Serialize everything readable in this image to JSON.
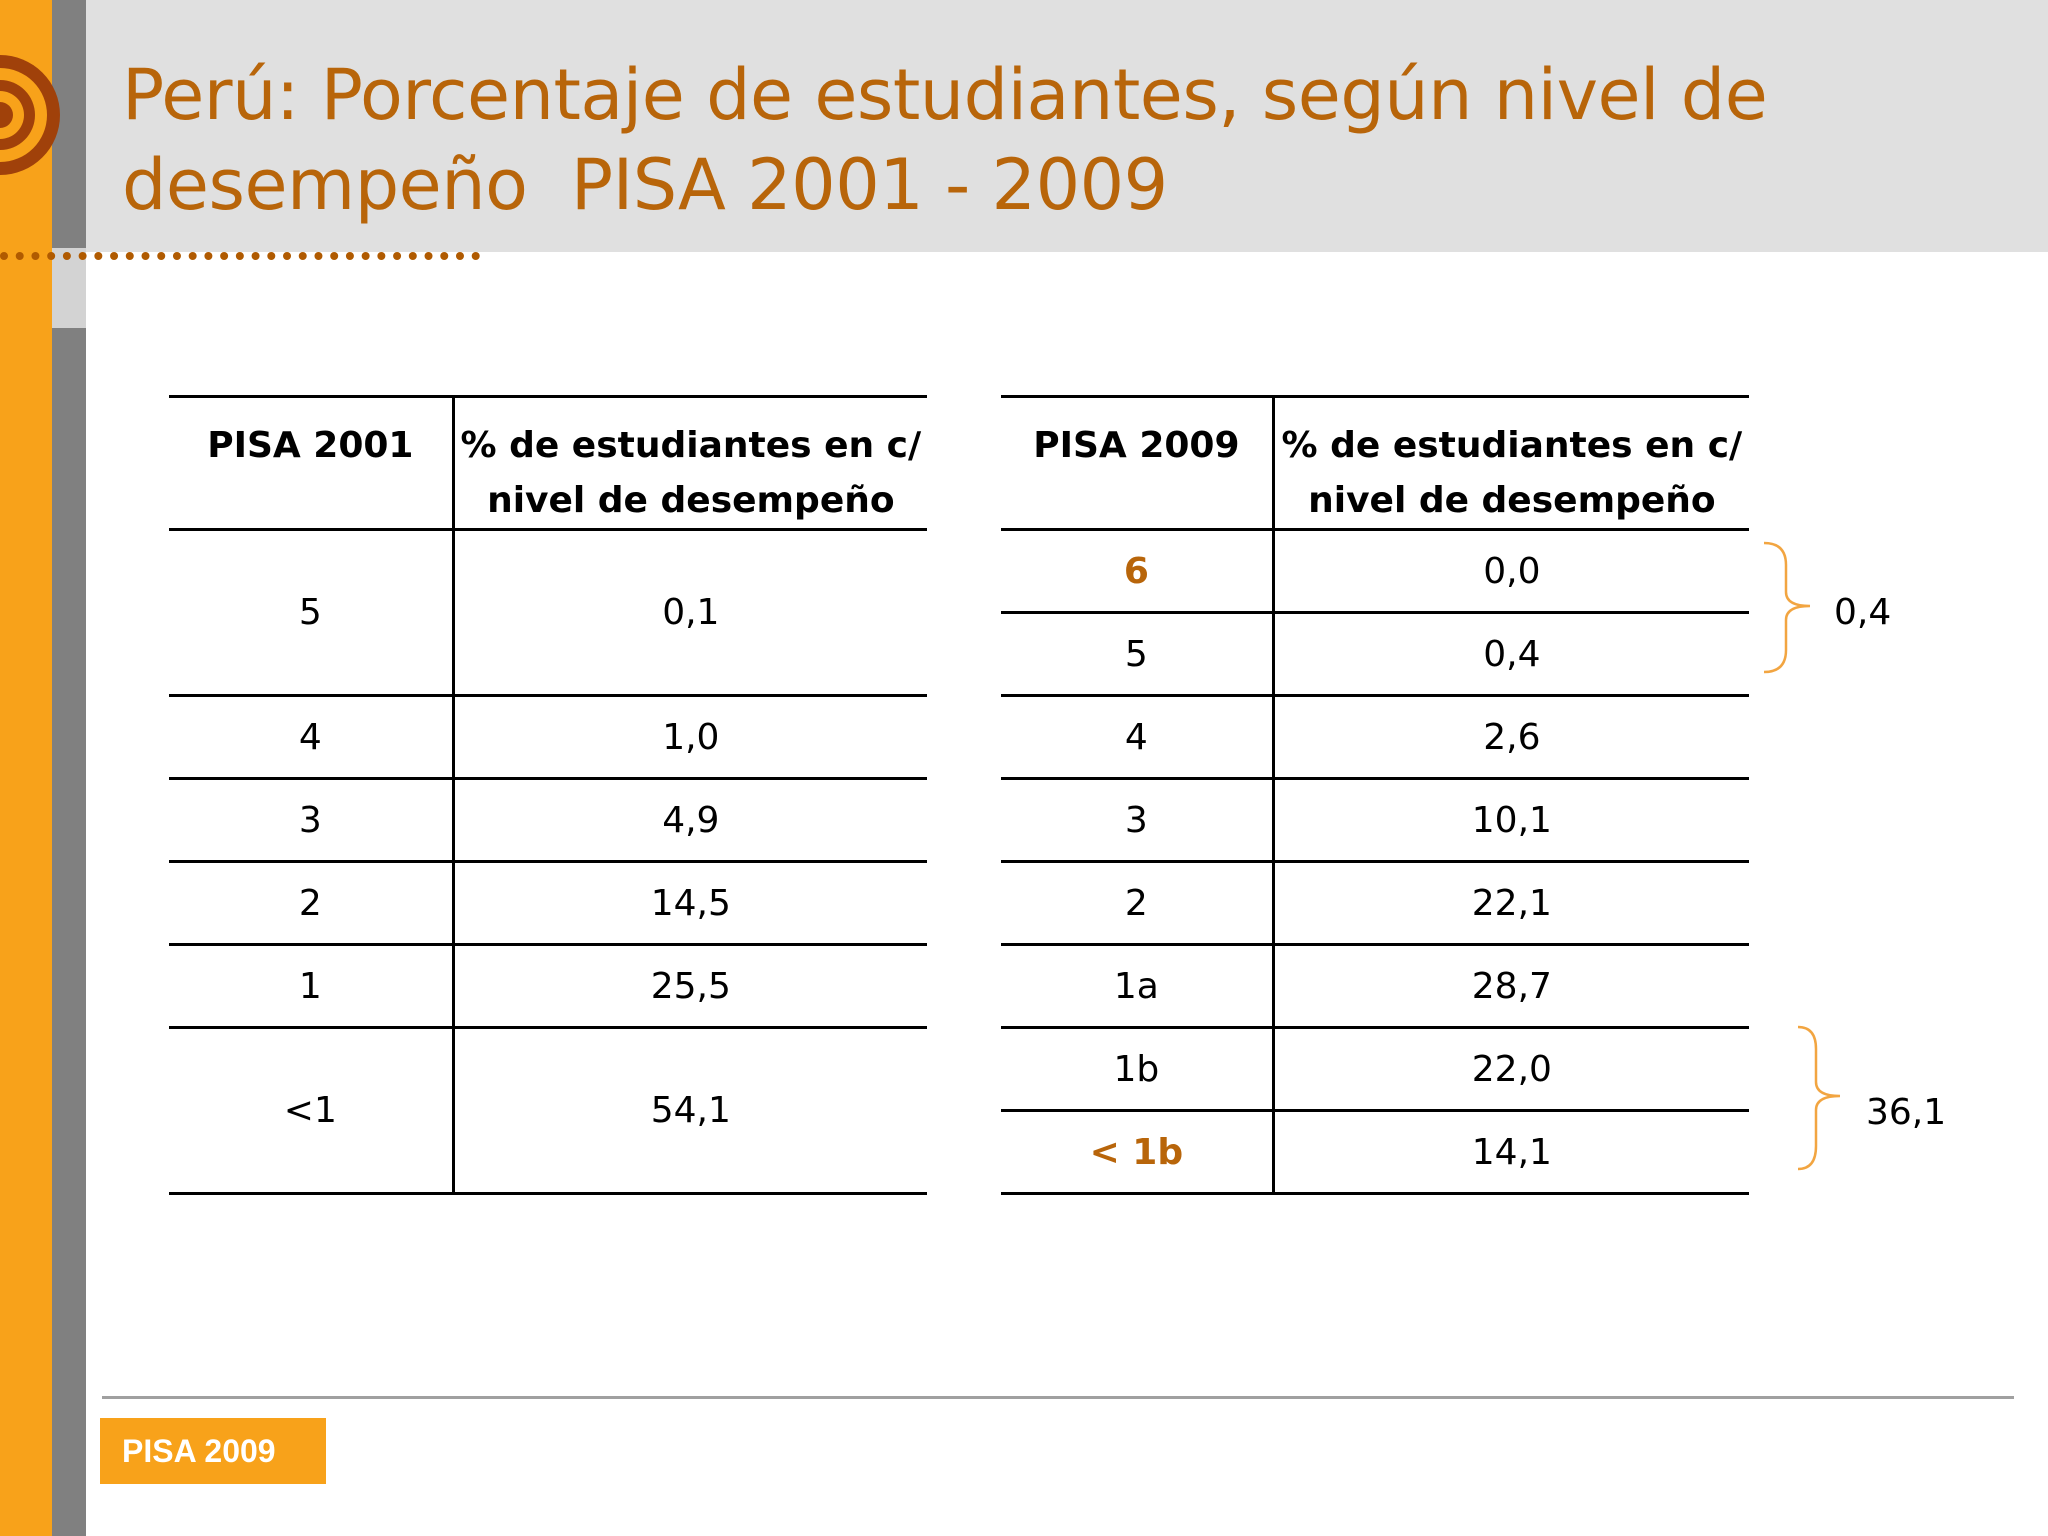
{
  "slide": {
    "title_line1": "Perú: Porcentaje de estudiantes, según nivel de",
    "title_line2": "desempeño  PISA 2001 - 2009",
    "accent_color": "#b8650a",
    "orange_color": "#f8a21a"
  },
  "table_2001": {
    "header_level": "PISA 2001",
    "header_pct_line1": "% de estudiantes en c/",
    "header_pct_line2": "nivel de desempeño",
    "rows": [
      {
        "level": "5",
        "pct": "0,1"
      },
      {
        "level": "4",
        "pct": "1,0"
      },
      {
        "level": "3",
        "pct": "4,9"
      },
      {
        "level": "2",
        "pct": "14,5"
      },
      {
        "level": "1",
        "pct": "25,5"
      },
      {
        "level": "<1",
        "pct": "54,1"
      }
    ]
  },
  "table_2009": {
    "header_level": "PISA 2009",
    "header_pct_line1": "% de estudiantes en c/",
    "header_pct_line2": "nivel de desempeño",
    "rows": [
      {
        "level": "6",
        "pct": "0,0"
      },
      {
        "level": "5",
        "pct": "0,4"
      },
      {
        "level": "4",
        "pct": "2,6"
      },
      {
        "level": "3",
        "pct": "10,1"
      },
      {
        "level": "2",
        "pct": "22,1"
      },
      {
        "level": "1a",
        "pct": "28,7"
      },
      {
        "level": "1b",
        "pct": "22,0"
      },
      {
        "level": "< 1b",
        "pct": "14,1"
      }
    ]
  },
  "braces": {
    "top_total": "0,4",
    "bottom_total": "36,1"
  },
  "footer": {
    "badge": "PISA 2009"
  }
}
